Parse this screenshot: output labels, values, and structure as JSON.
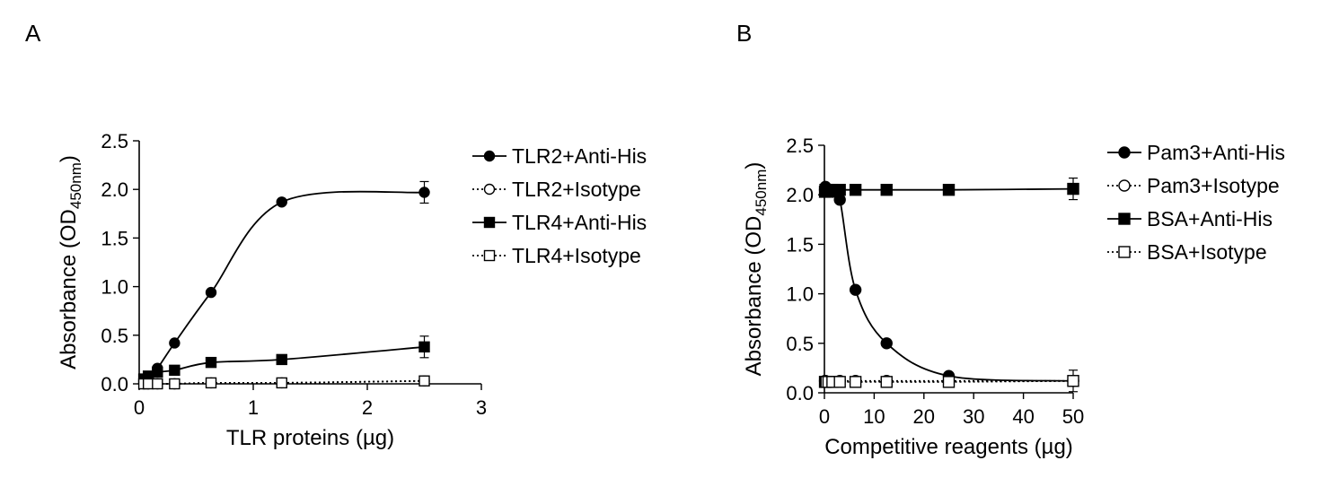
{
  "panels": {
    "a": {
      "label": "A"
    },
    "b": {
      "label": "B"
    }
  },
  "chart_data": [
    {
      "type": "line",
      "panel": "A",
      "xlabel": "TLR proteins (µg)",
      "ylabel_main": "Absorbance (OD",
      "ylabel_sub": "450nm",
      "ylabel_close": ")",
      "xlim": [
        0,
        3
      ],
      "ylim": [
        0,
        2.5
      ],
      "xticks": [
        0,
        1,
        2,
        3
      ],
      "xtick_labels": [
        "0",
        "1",
        "2",
        "3"
      ],
      "yticks": [
        0,
        0.5,
        1,
        1.5,
        2,
        2.5
      ],
      "ytick_labels": [
        "0.0",
        "0.5",
        "1.0",
        "1.5",
        "2.0",
        "2.5"
      ],
      "legend_position": "right",
      "series": [
        {
          "name": "TLR2+Anti-His",
          "marker": "circle",
          "fill": "filled",
          "line": "solid",
          "x": [
            0.04,
            0.08,
            0.16,
            0.31,
            0.63,
            1.25,
            2.5
          ],
          "y": [
            0.03,
            0.07,
            0.16,
            0.42,
            0.94,
            1.87,
            1.97
          ]
        },
        {
          "name": "TLR2+Isotype",
          "marker": "circle",
          "fill": "open",
          "line": "dotted",
          "x": [
            0.04,
            0.08,
            0.16,
            0.31,
            0.63,
            1.25,
            2.5
          ],
          "y": [
            0.0,
            0.0,
            0.0,
            0.0,
            0.01,
            0.01,
            0.03
          ]
        },
        {
          "name": "TLR4+Anti-His",
          "marker": "square",
          "fill": "filled",
          "line": "solid",
          "x": [
            0.04,
            0.08,
            0.16,
            0.31,
            0.63,
            1.25,
            2.5
          ],
          "y": [
            0.05,
            0.08,
            0.12,
            0.14,
            0.22,
            0.25,
            0.38
          ]
        },
        {
          "name": "TLR4+Isotype",
          "marker": "square",
          "fill": "open",
          "line": "dotted",
          "x": [
            0.04,
            0.08,
            0.16,
            0.31,
            0.63,
            1.25,
            2.5
          ],
          "y": [
            0.0,
            0.0,
            0.0,
            0.0,
            0.01,
            0.01,
            0.03
          ]
        }
      ]
    },
    {
      "type": "line",
      "panel": "B",
      "xlabel": "Competitive reagents (µg)",
      "ylabel_main": "Absorbance (OD",
      "ylabel_sub": "450nm",
      "ylabel_close": ")",
      "xlim": [
        0,
        50
      ],
      "ylim": [
        0,
        2.5
      ],
      "xticks": [
        0,
        10,
        20,
        30,
        40,
        50
      ],
      "xtick_labels": [
        "0",
        "10",
        "20",
        "30",
        "40",
        "50"
      ],
      "yticks": [
        0,
        0.5,
        1,
        1.5,
        2,
        2.5
      ],
      "ytick_labels": [
        "0.0",
        "0.5",
        "1.0",
        "1.5",
        "2.0",
        "2.5"
      ],
      "legend_position": "right",
      "series": [
        {
          "name": "Pam3+Anti-His",
          "marker": "circle",
          "fill": "filled",
          "line": "solid",
          "x": [
            0.1,
            0.2,
            0.4,
            0.8,
            1.6,
            3.1,
            6.25,
            12.5,
            25,
            50
          ],
          "y": [
            2.05,
            2.08,
            2.06,
            2.05,
            2.03,
            1.95,
            1.04,
            0.5,
            0.17,
            0.12
          ]
        },
        {
          "name": "Pam3+Isotype",
          "marker": "circle",
          "fill": "open",
          "line": "dotted",
          "x": [
            0.1,
            0.2,
            0.4,
            0.8,
            1.6,
            3.1,
            6.25,
            12.5,
            25,
            50
          ],
          "y": [
            0.12,
            0.12,
            0.11,
            0.11,
            0.11,
            0.12,
            0.12,
            0.12,
            0.12,
            0.12
          ]
        },
        {
          "name": "BSA+Anti-His",
          "marker": "square",
          "fill": "filled",
          "line": "solid",
          "x": [
            0.1,
            0.2,
            0.4,
            0.8,
            1.6,
            3.1,
            6.25,
            12.5,
            25,
            50
          ],
          "y": [
            2.03,
            2.05,
            2.05,
            2.05,
            2.05,
            2.05,
            2.05,
            2.05,
            2.05,
            2.06
          ]
        },
        {
          "name": "BSA+Isotype",
          "marker": "square",
          "fill": "open",
          "line": "dotted",
          "x": [
            0.1,
            0.2,
            0.4,
            0.8,
            1.6,
            3.1,
            6.25,
            12.5,
            25,
            50
          ],
          "y": [
            0.11,
            0.11,
            0.11,
            0.11,
            0.11,
            0.11,
            0.11,
            0.11,
            0.11,
            0.12
          ]
        }
      ]
    }
  ]
}
